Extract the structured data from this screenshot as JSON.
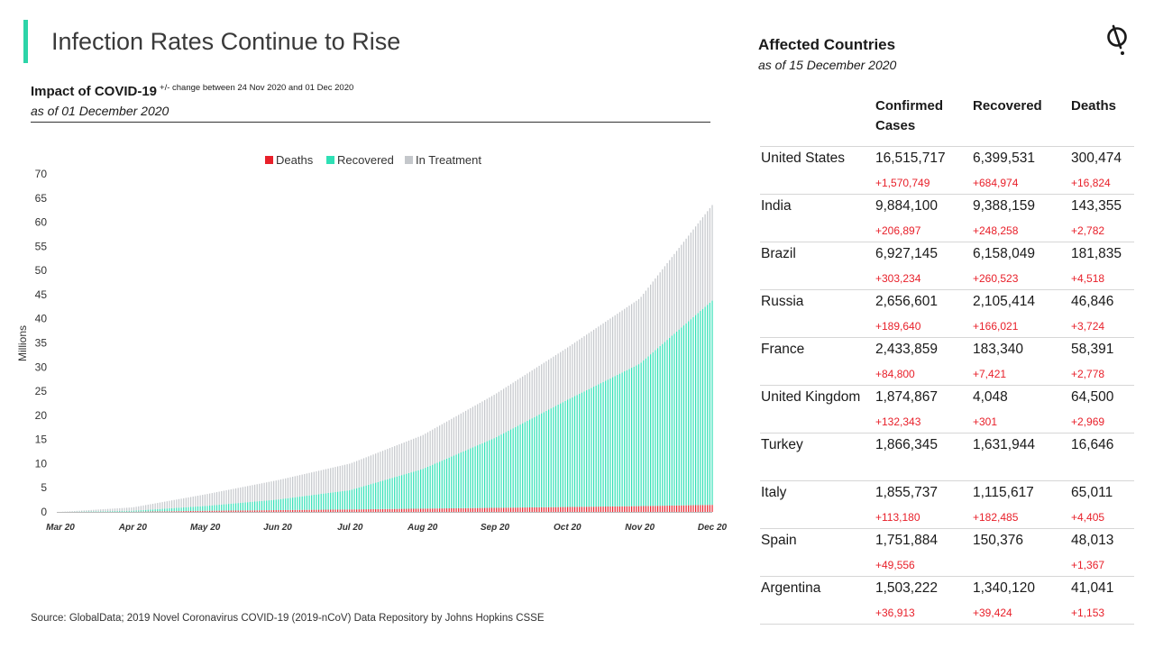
{
  "title": "Infection Rates Continue to Rise",
  "chart_subtitle": "Impact of COVID-19",
  "chart_note": "+/- change between 24 Nov 2020 and 01 Dec 2020",
  "chart_date": "as of 01 December 2020",
  "source": "Source: GlobalData; 2019 Novel Coronavirus COVID-19 (2019-nCoV) Data Repository by Johns Hopkins CSSE",
  "colors": {
    "accent": "#2dd4a8",
    "deaths": "#e8202a",
    "recovered": "#2ee0b5",
    "in_treatment": "#c4c7cb",
    "change": "#e8202a"
  },
  "logo_icon": "globaldata-logo-icon",
  "chart_data": {
    "type": "bar",
    "stacked": true,
    "ylabel": "Millions",
    "ylim": [
      0,
      70
    ],
    "yticks": [
      0,
      5,
      10,
      15,
      20,
      25,
      30,
      35,
      40,
      45,
      50,
      55,
      60,
      65,
      70
    ],
    "xticks": [
      "Mar 20",
      "Apr 20",
      "May 20",
      "Jun 20",
      "Jul 20",
      "Aug 20",
      "Sep 20",
      "Oct 20",
      "Nov 20",
      "Dec 20"
    ],
    "grid": false,
    "legend_position": "top-center",
    "legend": [
      "Deaths",
      "Recovered",
      "In Treatment"
    ],
    "x": [
      "Mar 20",
      "Apr 20",
      "May 20",
      "Jun 20",
      "Jul 20",
      "Aug 20",
      "Sep 20",
      "Oct 20",
      "Nov 20",
      "Dec 20"
    ],
    "series": [
      {
        "name": "Deaths",
        "values": [
          0.0,
          0.04,
          0.23,
          0.37,
          0.51,
          0.68,
          0.85,
          1.02,
          1.2,
          1.46
        ]
      },
      {
        "name": "Recovered",
        "values": [
          0.0,
          0.2,
          1.0,
          2.2,
          4.0,
          8.2,
          14.5,
          22.2,
          29.5,
          42.3
        ]
      },
      {
        "name": "In Treatment",
        "values": [
          0.0,
          0.7,
          2.4,
          4.0,
          5.5,
          7.0,
          9.0,
          10.8,
          13.5,
          19.8
        ]
      }
    ]
  },
  "affected": {
    "title": "Affected Countries",
    "date": "as of 15 December 2020",
    "headers": {
      "country": "",
      "confirmed": "Confirmed Cases",
      "recovered": "Recovered",
      "deaths": "Deaths"
    },
    "rows": [
      {
        "country": "United States",
        "confirmed": "16,515,717",
        "recovered": "6,399,531",
        "deaths": "300,474",
        "confirmed_change": "+1,570,749",
        "recovered_change": "+684,974",
        "deaths_change": "+16,824"
      },
      {
        "country": "India",
        "confirmed": "9,884,100",
        "recovered": "9,388,159",
        "deaths": "143,355",
        "confirmed_change": "+206,897",
        "recovered_change": "+248,258",
        "deaths_change": "+2,782"
      },
      {
        "country": "Brazil",
        "confirmed": "6,927,145",
        "recovered": "6,158,049",
        "deaths": "181,835",
        "confirmed_change": "+303,234",
        "recovered_change": "+260,523",
        "deaths_change": "+4,518"
      },
      {
        "country": "Russia",
        "confirmed": "2,656,601",
        "recovered": "2,105,414",
        "deaths": "46,846",
        "confirmed_change": "+189,640",
        "recovered_change": "+166,021",
        "deaths_change": "+3,724"
      },
      {
        "country": "France",
        "confirmed": "2,433,859",
        "recovered": "183,340",
        "deaths": "58,391",
        "confirmed_change": "+84,800",
        "recovered_change": "+7,421",
        "deaths_change": "+2,778"
      },
      {
        "country": "United Kingdom",
        "confirmed": "1,874,867",
        "recovered": "4,048",
        "deaths": "64,500",
        "confirmed_change": "+132,343",
        "recovered_change": "+301",
        "deaths_change": "+2,969"
      },
      {
        "country": "Turkey",
        "confirmed": "1,866,345",
        "recovered": "1,631,944",
        "deaths": "16,646",
        "confirmed_change": "",
        "recovered_change": "",
        "deaths_change": ""
      },
      {
        "country": "Italy",
        "confirmed": "1,855,737",
        "recovered": "1,115,617",
        "deaths": "65,011",
        "confirmed_change": "+113,180",
        "recovered_change": "+182,485",
        "deaths_change": "+4,405"
      },
      {
        "country": "Spain",
        "confirmed": "1,751,884",
        "recovered": "150,376",
        "deaths": "48,013",
        "confirmed_change": "+49,556",
        "recovered_change": "",
        "deaths_change": "+1,367"
      },
      {
        "country": "Argentina",
        "confirmed": "1,503,222",
        "recovered": "1,340,120",
        "deaths": "41,041",
        "confirmed_change": "+36,913",
        "recovered_change": "+39,424",
        "deaths_change": "+1,153"
      }
    ]
  }
}
